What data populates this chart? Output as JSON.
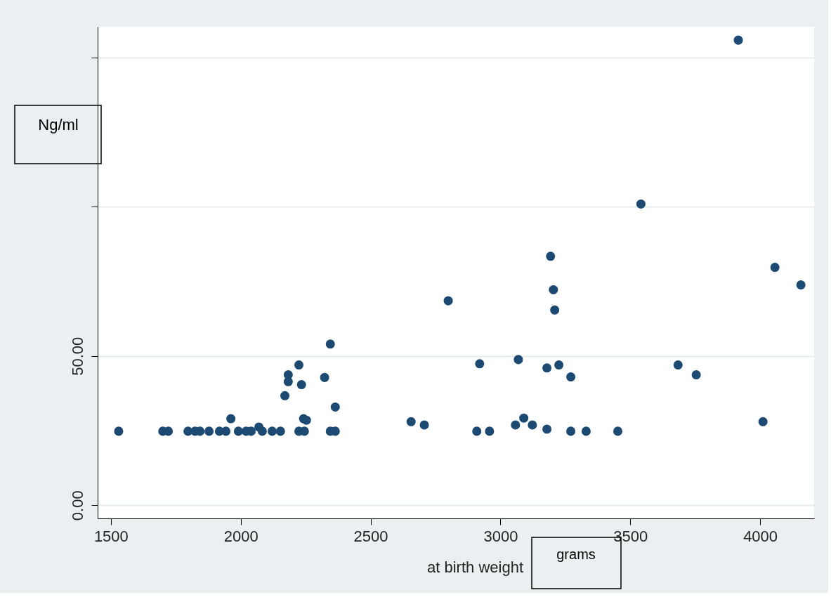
{
  "chart_data": {
    "type": "scatter",
    "xlabel": "at birth weight",
    "ylabel": "Ng/ml",
    "annotations": [
      "grams"
    ],
    "x": [
      1530,
      1700,
      1721,
      1797,
      1824,
      1843,
      1878,
      1918,
      1943,
      1962,
      1991,
      2021,
      2040,
      2070,
      2083,
      2121,
      2153,
      2170,
      2183,
      2183,
      2224,
      2224,
      2234,
      2242,
      2253,
      2245,
      2323,
      2345,
      2345,
      2364,
      2364,
      2656,
      2707,
      2799,
      2909,
      2920,
      2958,
      3058,
      3069,
      3090,
      3123,
      3179,
      3179,
      3193,
      3204,
      3209,
      3225,
      3271,
      3271,
      3330,
      3452,
      3541,
      3684,
      3754,
      3916,
      4011,
      4057,
      4157
    ],
    "series": [
      {
        "color": "#1c4a72",
        "values": [
          24.8,
          24.8,
          24.8,
          24.8,
          24.8,
          24.8,
          24.8,
          24.8,
          24.8,
          29.0,
          24.8,
          24.8,
          24.8,
          26.2,
          24.8,
          24.8,
          24.8,
          36.7,
          41.4,
          43.7,
          47.0,
          24.8,
          40.4,
          29.0,
          28.5,
          24.8,
          42.8,
          54.0,
          24.8,
          24.8,
          32.9,
          28.0,
          26.9,
          68.5,
          24.8,
          47.4,
          24.8,
          26.9,
          48.8,
          29.2,
          26.9,
          46.0,
          25.5,
          83.4,
          72.2,
          65.4,
          47.0,
          43.0,
          24.8,
          24.8,
          24.8,
          100.9,
          47.0,
          43.7,
          155.8,
          28.0,
          79.7,
          73.8
        ]
      }
    ],
    "xlim": [
      1449,
      4208
    ],
    "ylim": [
      -4.4,
      160.3
    ],
    "xticks": [
      1500,
      2000,
      2500,
      3000,
      3500,
      4000
    ],
    "yticks": [
      {
        "value": 0,
        "label": "0.00"
      },
      {
        "value": 50,
        "label": "50.00"
      },
      {
        "value": 100,
        "label": null
      },
      {
        "value": 150,
        "label": null
      }
    ],
    "grid": "y",
    "marker": "circle"
  }
}
